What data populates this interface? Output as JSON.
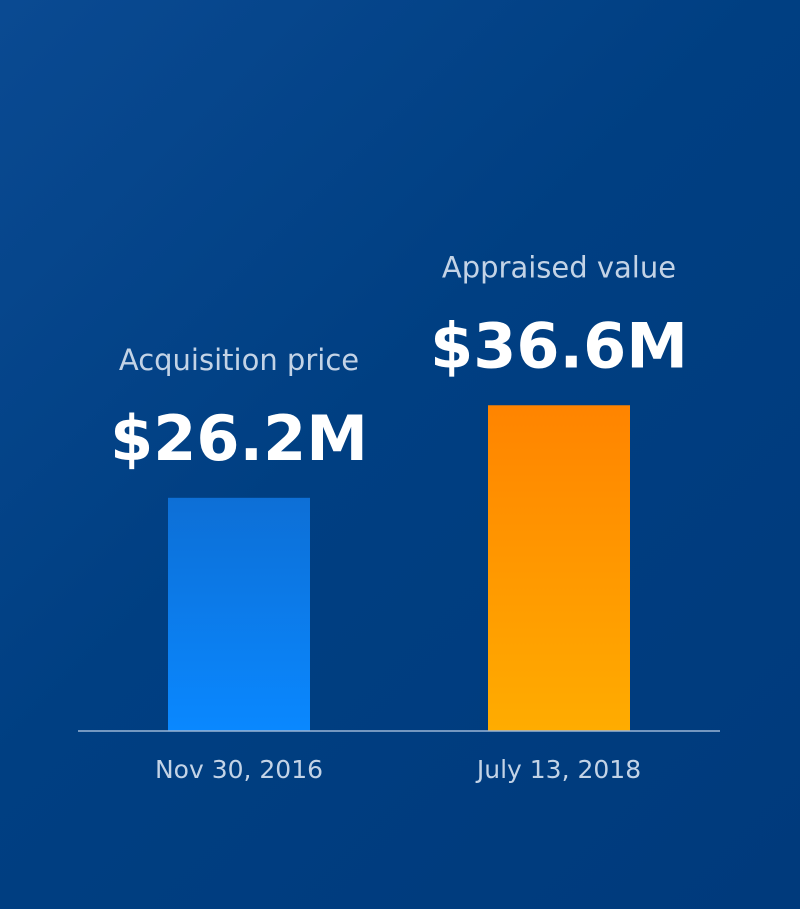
{
  "chart_data": {
    "type": "bar",
    "categories": [
      "Nov 30, 2016",
      "July 13, 2018"
    ],
    "labels": [
      "Acquisition price",
      "Appraised value"
    ],
    "values": [
      26.2,
      36.6
    ],
    "value_labels": [
      "$26.2M",
      "$36.6M"
    ],
    "colors": [
      "#0a80f5",
      "#ff9a10"
    ],
    "unit": "$M",
    "ylim": [
      0,
      50
    ],
    "grid": false
  }
}
